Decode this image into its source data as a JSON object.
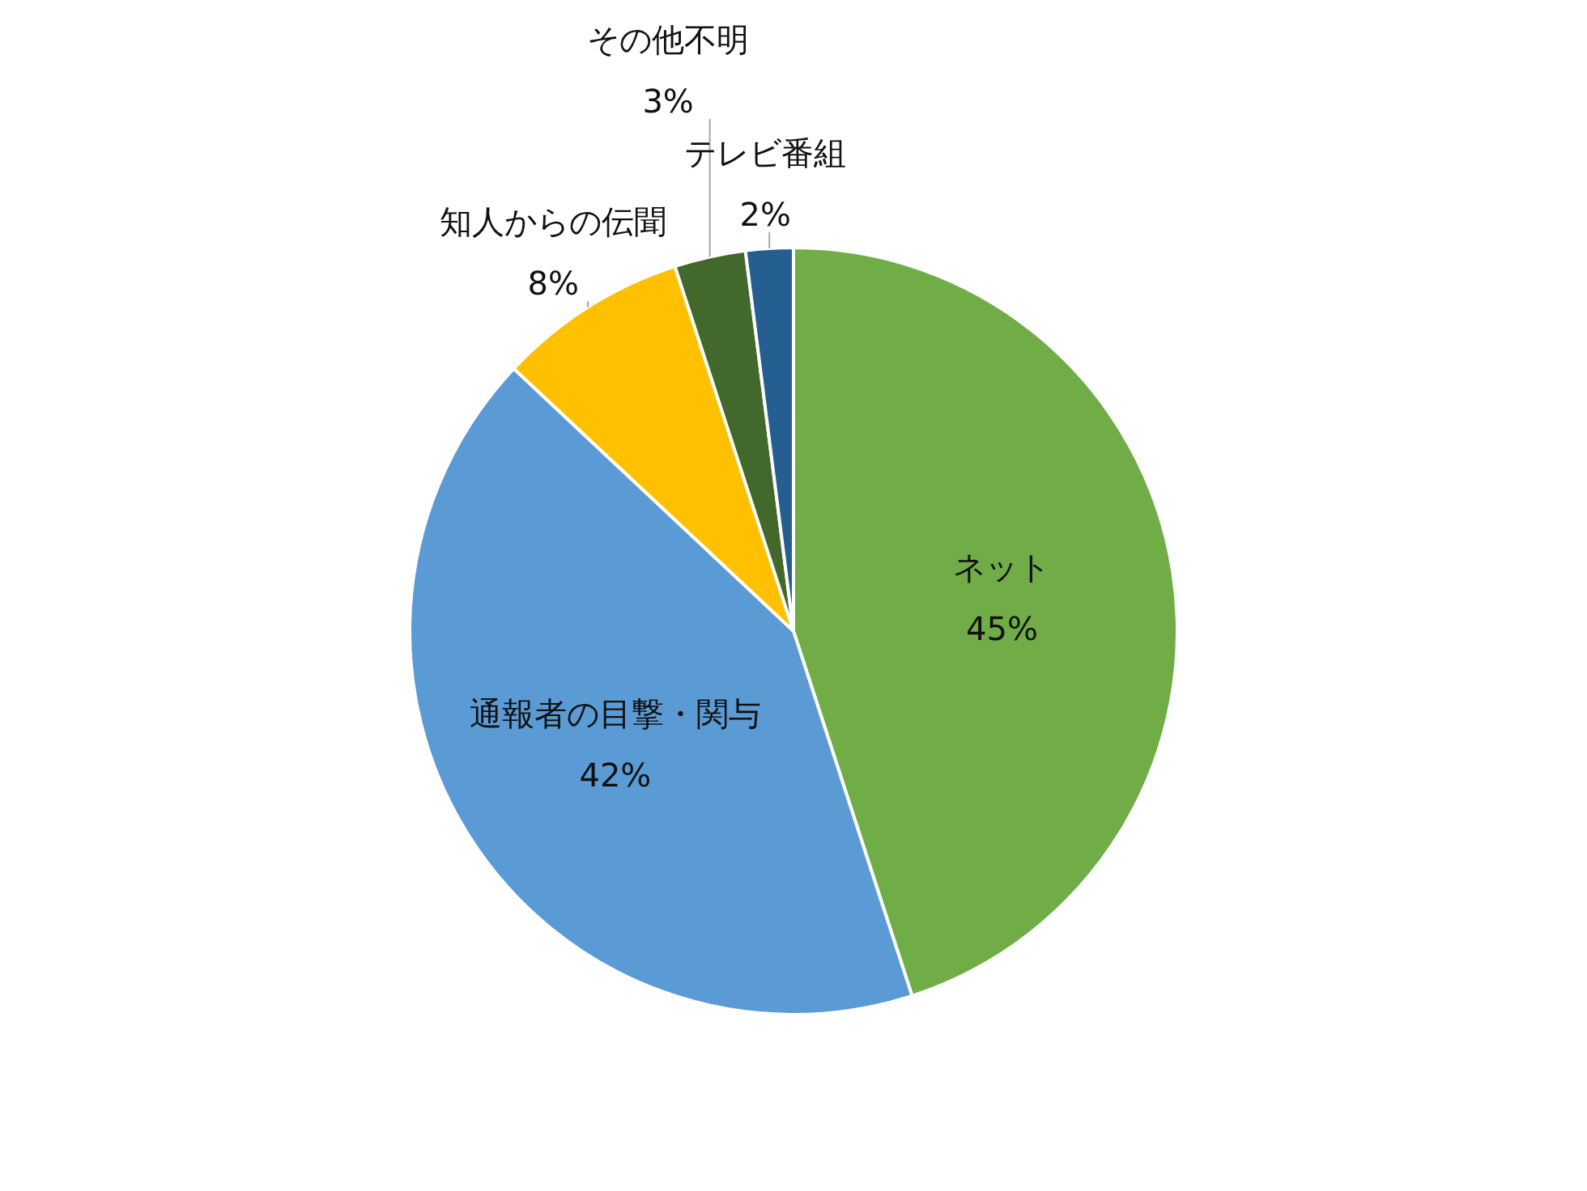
{
  "chart_data": {
    "type": "pie",
    "categories": [
      "ネット",
      "通報者の目撃・関与",
      "知人からの伝聞",
      "その他不明",
      "テレビ番組"
    ],
    "values": [
      45,
      42,
      8,
      3,
      2
    ],
    "colors": [
      "#70ad47",
      "#5b9bd5",
      "#ffc000",
      "#43682b",
      "#255e91"
    ],
    "value_labels": [
      "45%",
      "42%",
      "8%",
      "3%",
      "2%"
    ],
    "legend": false
  }
}
